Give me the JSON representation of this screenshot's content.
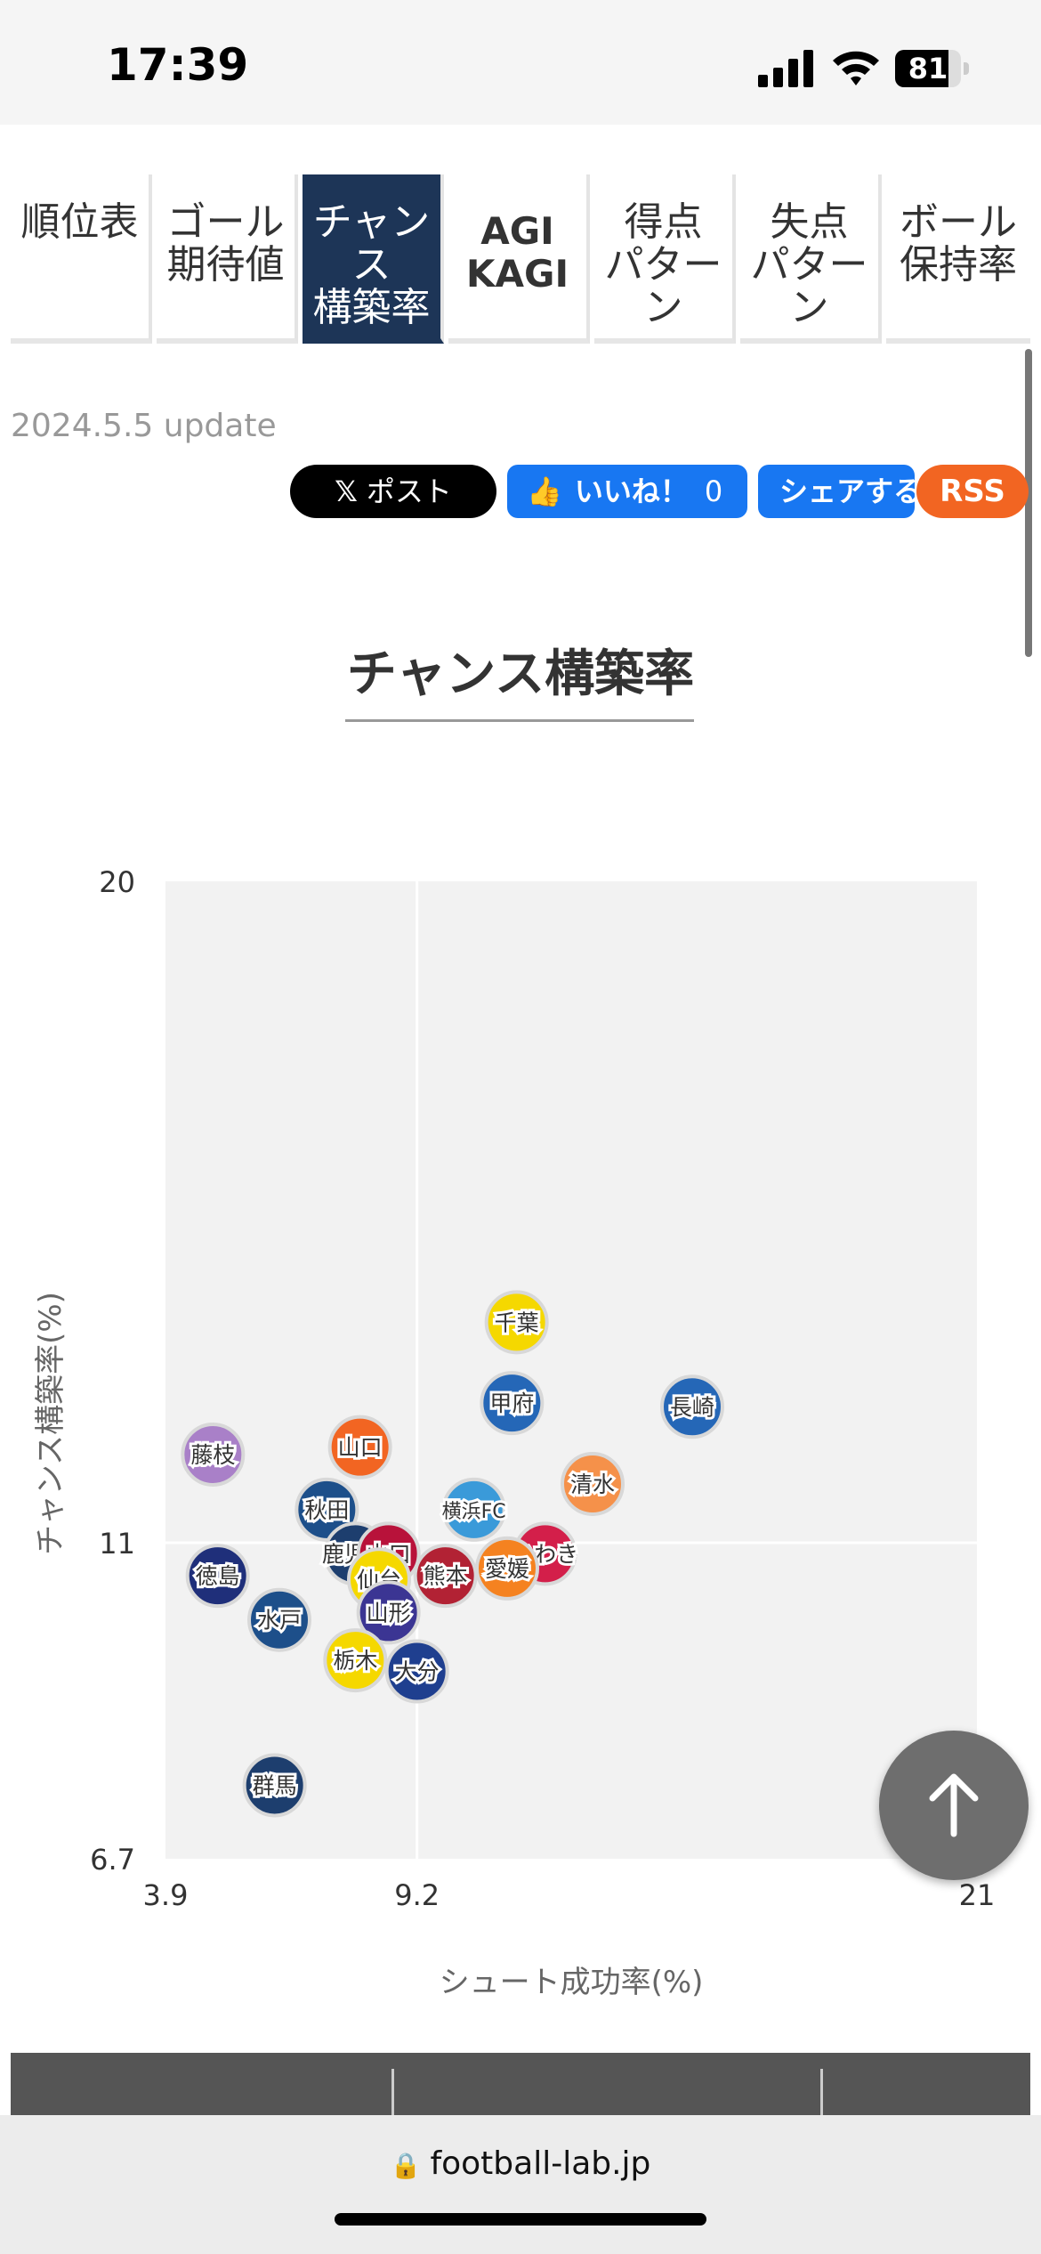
{
  "status": {
    "time": "17:39",
    "battery": "81",
    "battery_level": 0.81
  },
  "tabs": [
    {
      "label": "順位表"
    },
    {
      "label": "ゴール\n期待値"
    },
    {
      "label": "チャン\nス\n構築率"
    },
    {
      "label": "AGI\nKAGI"
    },
    {
      "label": "得点\nパター\nン"
    },
    {
      "label": "失点\nパター\nン"
    },
    {
      "label": "ボール\n保持率"
    }
  ],
  "update": "2024.5.5 update",
  "social": {
    "x_label": "ポスト",
    "like_label": "いいね！",
    "like_count": "0",
    "share_label": "シェアする",
    "rss_label": "RSS"
  },
  "page_title": "チャンス構築率",
  "chart_data": {
    "type": "scatter",
    "title": "",
    "xlabel": "シュート成功率(%)",
    "ylabel": "チャンス構築率(%)",
    "xlim": [
      3.9,
      21
    ],
    "ylim": [
      6.7,
      20
    ],
    "xticks": [
      "3.9",
      "9.2",
      "21"
    ],
    "yticks": [
      "20",
      "11",
      "6.7"
    ],
    "grid": true,
    "points": [
      {
        "label": "千葉",
        "x": 11.3,
        "y": 14.0,
        "color": "#f5d800"
      },
      {
        "label": "甲府",
        "x": 11.2,
        "y": 12.9,
        "color": "#2567b7"
      },
      {
        "label": "長崎",
        "x": 15.0,
        "y": 12.85,
        "color": "#2567b7"
      },
      {
        "label": "藤枝",
        "x": 4.9,
        "y": 12.2,
        "color": "#a980c8"
      },
      {
        "label": "山口",
        "x": 8.0,
        "y": 12.3,
        "color": "#f26522"
      },
      {
        "label": "清水",
        "x": 12.9,
        "y": 11.8,
        "color": "#f5914a"
      },
      {
        "label": "秋田",
        "x": 7.3,
        "y": 11.45,
        "color": "#1d4f8a"
      },
      {
        "label": "横浜FC",
        "x": 10.4,
        "y": 11.45,
        "color": "#3a9ad9"
      },
      {
        "label": "いわき",
        "x": 11.9,
        "y": 10.85,
        "color": "#d31f4a"
      },
      {
        "label": "鹿児島",
        "x": 7.9,
        "y": 10.85,
        "color": "#1d3e6e"
      },
      {
        "label": "山口",
        "x": 8.6,
        "y": 10.85,
        "color": "#b8123a"
      },
      {
        "label": "仙台",
        "x": 8.4,
        "y": 10.5,
        "color": "#f5d800"
      },
      {
        "label": "熊本",
        "x": 9.8,
        "y": 10.55,
        "color": "#b22234"
      },
      {
        "label": "愛媛",
        "x": 11.1,
        "y": 10.65,
        "color": "#f58220"
      },
      {
        "label": "徳島",
        "x": 5.0,
        "y": 10.55,
        "color": "#1f2f7a"
      },
      {
        "label": "水戸",
        "x": 6.3,
        "y": 9.95,
        "color": "#1d4f8a"
      },
      {
        "label": "山形",
        "x": 8.6,
        "y": 10.05,
        "color": "#3b3593"
      },
      {
        "label": "栃木",
        "x": 7.9,
        "y": 9.4,
        "color": "#f5d800"
      },
      {
        "label": "大分",
        "x": 9.2,
        "y": 9.25,
        "color": "#1f3f8f"
      },
      {
        "label": "群馬",
        "x": 6.2,
        "y": 7.7,
        "color": "#1d3e6e"
      }
    ]
  },
  "browser": {
    "url": "football-lab.jp"
  }
}
